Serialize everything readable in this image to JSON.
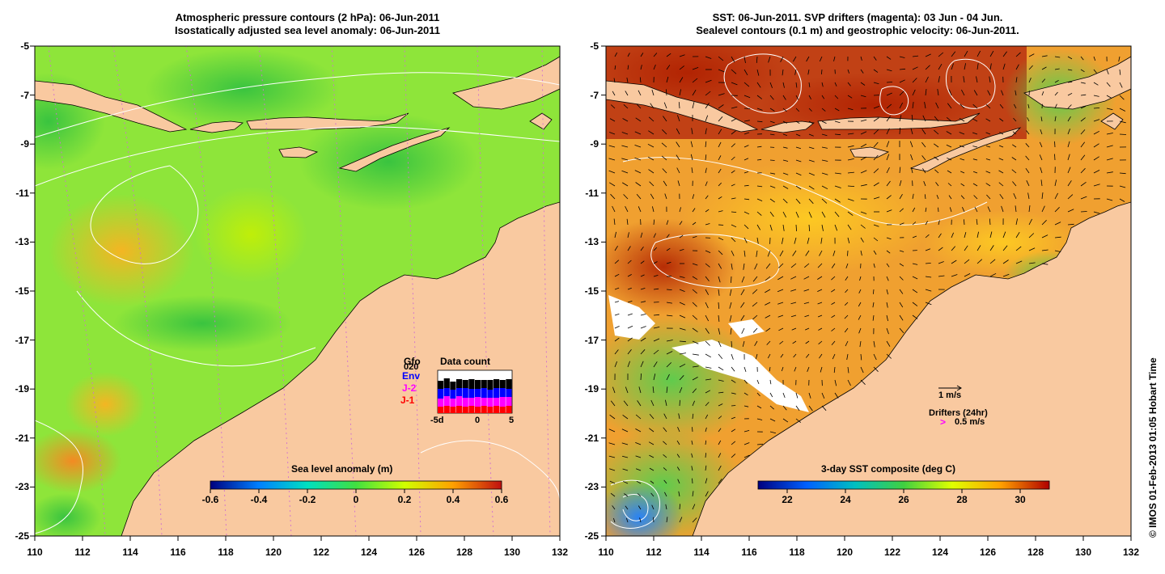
{
  "left_panel": {
    "title_line1": "Atmospheric pressure contours (2 hPa): 06-Jun-2011",
    "title_line2": "Isostatically adjusted sea level anomaly: 06-Jun-2011",
    "colorbar_label": "Sea level anomaly (m)",
    "colorbar_ticks": [
      "-0.6",
      "-0.4",
      "-0.2",
      "0",
      "0.2",
      "0.4",
      "0.6"
    ],
    "colorbar_stops": [
      "#00007f",
      "#0080ff",
      "#00e0c0",
      "#40e040",
      "#d0ff00",
      "#ffa000",
      "#c01010"
    ],
    "inset": {
      "title": "Data count",
      "legend": [
        {
          "label": "Gfo",
          "color": "#000000"
        },
        {
          "label": "Env",
          "color": "#0000ff"
        },
        {
          "label": "J-2",
          "color": "#ff00ff"
        },
        {
          "label": "J-1",
          "color": "#ff0000"
        }
      ],
      "overlapped_label": "020",
      "x_ticks": [
        "-5d",
        "0",
        "5"
      ]
    }
  },
  "right_panel": {
    "title_line1": "SST: 06-Jun-2011. SVP drifters (magenta): 03 Jun - 04 Jun.",
    "title_line2": "Sealevel contours (0.1 m) and geostrophic velocity: 06-Jun-2011.",
    "colorbar_label": "3-day SST composite (deg C)",
    "colorbar_ticks": [
      "22",
      "24",
      "26",
      "28",
      "30"
    ],
    "colorbar_stops": [
      "#00007f",
      "#0060ff",
      "#00c0c0",
      "#40d040",
      "#e0ff00",
      "#ffa000",
      "#b00000"
    ],
    "velocity_scale": "1 m/s",
    "drifters_label": "Drifters (24hr)",
    "drifters_marker": ">",
    "drifters_speed": "0.5 m/s"
  },
  "axes": {
    "x_ticks": [
      "110",
      "112",
      "114",
      "116",
      "118",
      "120",
      "122",
      "124",
      "126",
      "128",
      "130",
      "132"
    ],
    "y_ticks": [
      "-5",
      "-7",
      "-9",
      "-11",
      "-13",
      "-15",
      "-17",
      "-19",
      "-21",
      "-23",
      "-25"
    ]
  },
  "credit": "© IMOS 01-Feb-2013 01:05 Hobart Time",
  "colors": {
    "land": "#f9c9a0",
    "left_sea": "#8ee53a",
    "right_sea": "#f0a030",
    "contour": "#ffffff",
    "pressure_dots": "#d070d0",
    "drifter": "#ff00ff"
  }
}
